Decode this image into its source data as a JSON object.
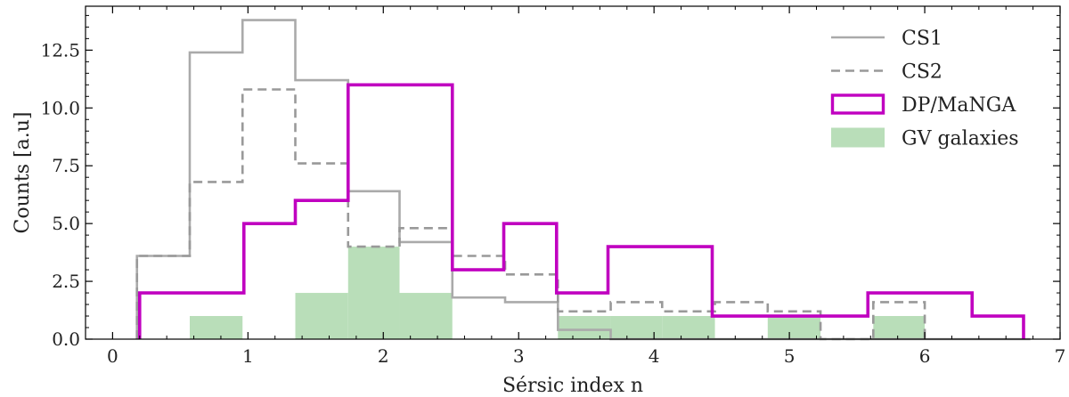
{
  "chart_data": {
    "type": "histogram",
    "xlabel": "Sérsic index n",
    "ylabel": "Counts [a.u]",
    "xlim": [
      -0.2,
      7.0
    ],
    "ylim": [
      0,
      14.4
    ],
    "xticks": [
      0,
      1,
      2,
      3,
      4,
      5,
      6,
      7
    ],
    "xtick_labels": [
      "0",
      "1",
      "2",
      "3",
      "4",
      "5",
      "6",
      "7"
    ],
    "yticks": [
      0,
      2.5,
      5,
      7.5,
      10,
      12.5
    ],
    "ytick_labels": [
      "0.0",
      "2.5",
      "5.0",
      "7.5",
      "10.0",
      "12.5"
    ],
    "grid": false,
    "legend_position": "top-right",
    "series": [
      {
        "name": "CS1",
        "style": "step-solid",
        "color": "#aaaaaa",
        "bin_edges": [
          0.18,
          0.57,
          0.96,
          1.35,
          1.74,
          2.12,
          2.51,
          2.9,
          3.29,
          3.68,
          4.06,
          4.45,
          4.84,
          5.23,
          5.62,
          6.0,
          6.39,
          6.78
        ],
        "values": [
          3.6,
          12.4,
          13.8,
          11.2,
          6.4,
          4.2,
          1.8,
          1.6,
          0.4,
          0.0,
          0.0,
          0.0,
          0.0,
          0.0,
          0.0,
          0.0,
          0.0
        ]
      },
      {
        "name": "CS2",
        "style": "step-dashed",
        "color": "#999999",
        "bin_edges": [
          0.18,
          0.57,
          0.96,
          1.35,
          1.74,
          2.12,
          2.51,
          2.9,
          3.29,
          3.68,
          4.06,
          4.45,
          4.84,
          5.23,
          5.62,
          6.0
        ],
        "values": [
          3.6,
          6.8,
          10.8,
          7.6,
          4.0,
          4.8,
          3.6,
          2.8,
          1.2,
          1.6,
          1.2,
          1.6,
          1.2,
          0.0,
          1.6
        ]
      },
      {
        "name": "DP/MaNGA",
        "style": "step-solid-thick",
        "color": "#c000c0",
        "bin_edges": [
          0.2,
          0.97,
          1.35,
          1.74,
          2.12,
          2.51,
          2.89,
          3.28,
          3.66,
          4.43,
          5.58,
          6.35,
          6.73
        ],
        "values": [
          2,
          5,
          6,
          11,
          11,
          3,
          5,
          2,
          4,
          1,
          2,
          1
        ]
      },
      {
        "name": "GV galaxies",
        "style": "filled-bars",
        "color": "#b9deb9",
        "bin_edges": [
          0.57,
          0.96,
          1.35,
          1.74,
          2.12,
          2.51,
          3.29,
          3.68,
          4.06,
          4.45,
          4.84,
          5.23,
          5.62,
          6.0,
          6.39,
          6.78
        ],
        "values": [
          1,
          0,
          2,
          4,
          2,
          0,
          1,
          1,
          1,
          0,
          1,
          0,
          1,
          0,
          0
        ]
      }
    ]
  }
}
